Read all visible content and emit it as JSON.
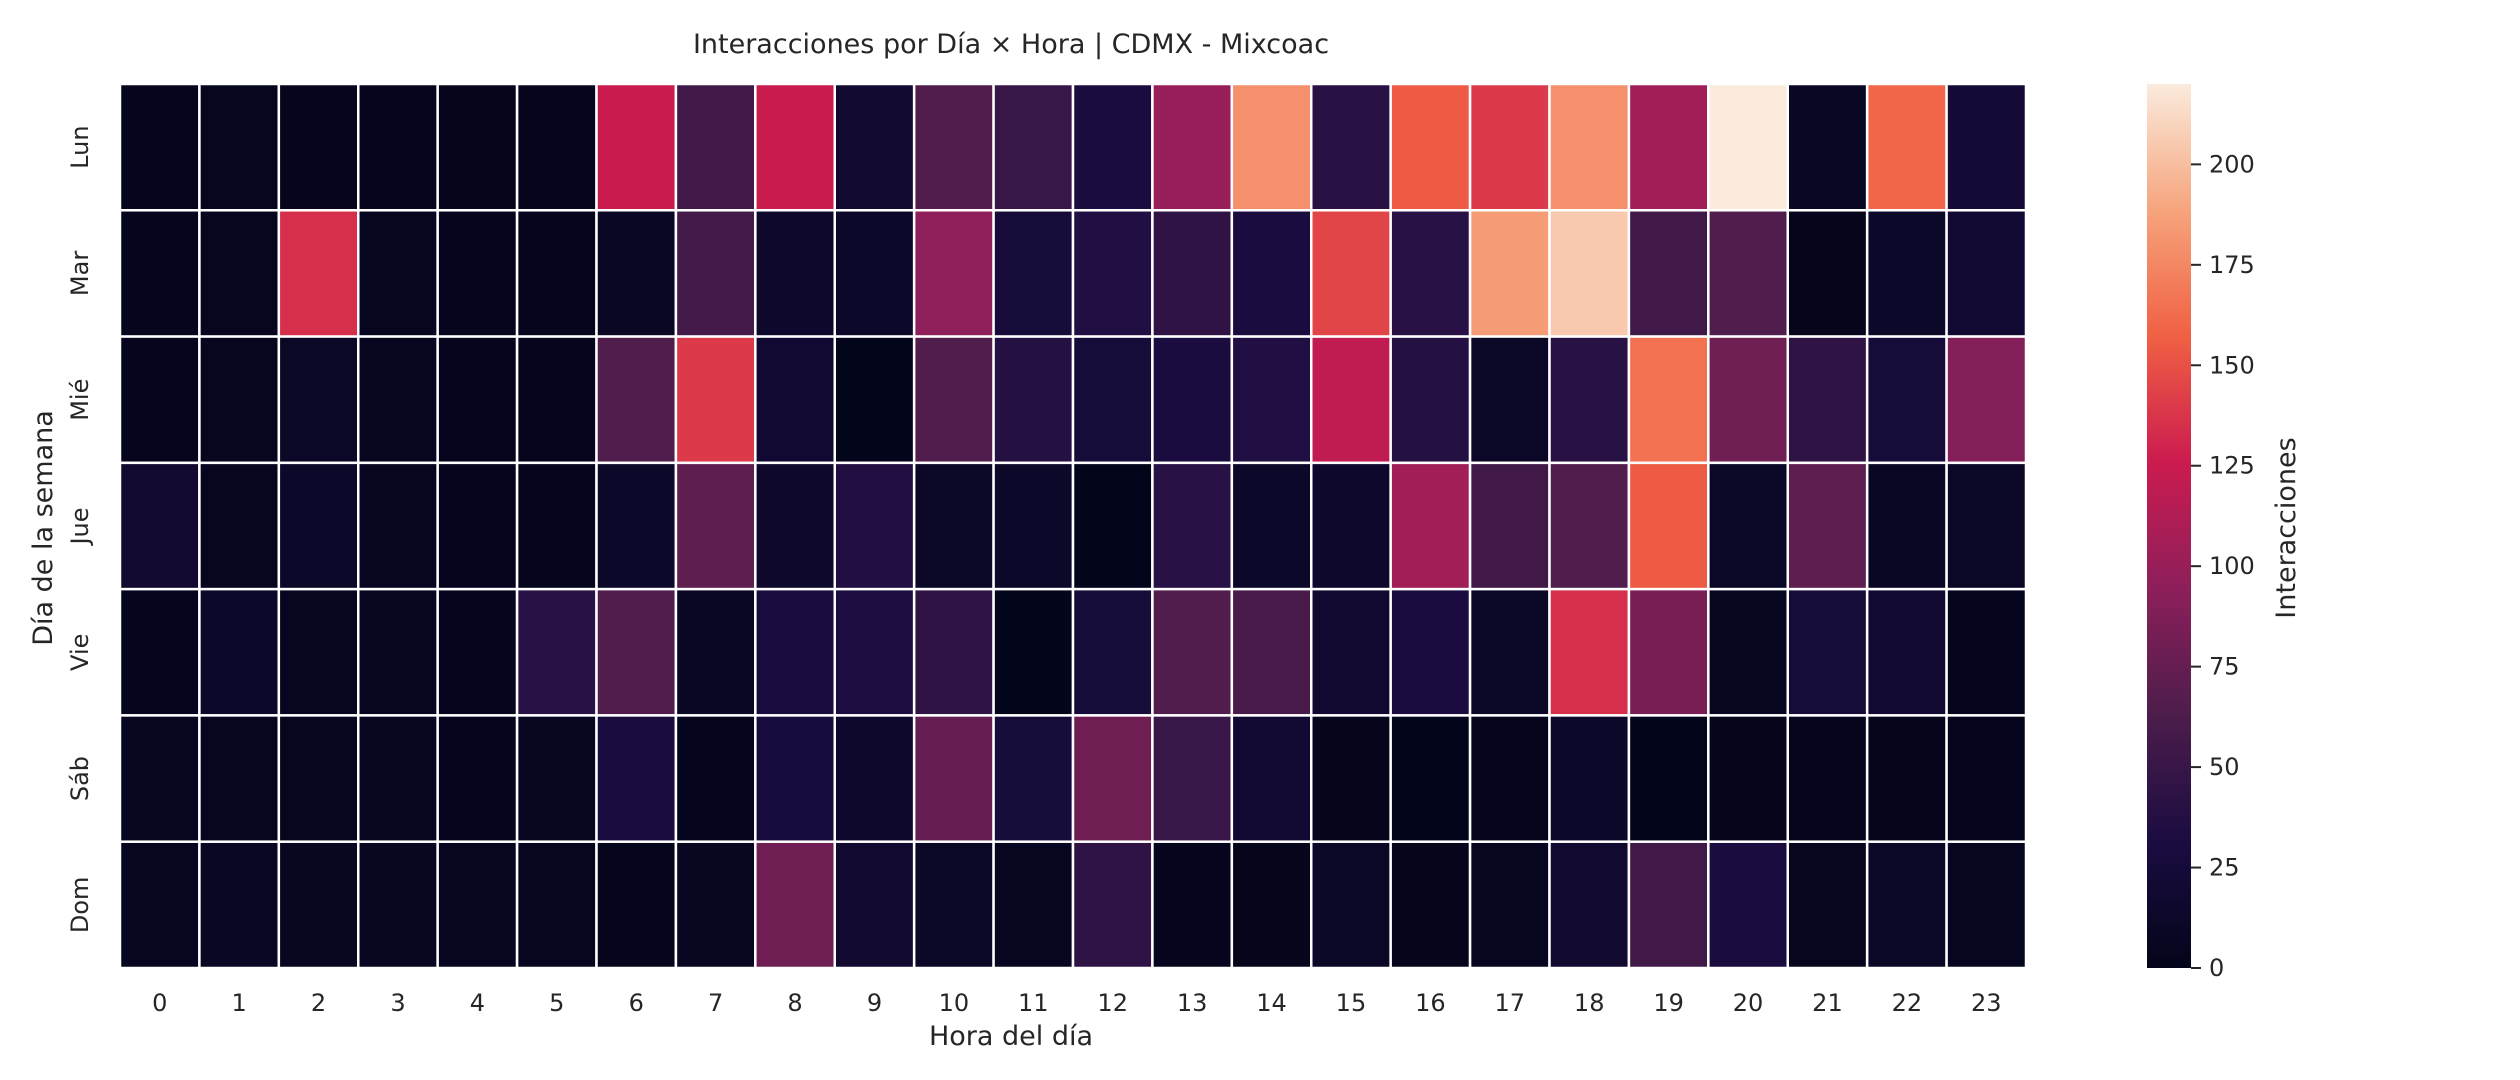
{
  "chart_data": {
    "type": "heatmap",
    "title": "Interacciones por Día × Hora | CDMX - Mixcoac",
    "xlabel": "Hora del día",
    "ylabel": "Día de la semana",
    "x_categories": [
      "0",
      "1",
      "2",
      "3",
      "4",
      "5",
      "6",
      "7",
      "8",
      "9",
      "10",
      "11",
      "12",
      "13",
      "14",
      "15",
      "16",
      "17",
      "18",
      "19",
      "20",
      "21",
      "22",
      "23"
    ],
    "y_categories": [
      "Lun",
      "Mar",
      "Mié",
      "Jue",
      "Vie",
      "Sáb",
      "Dom"
    ],
    "values": [
      [
        3,
        4,
        3,
        3,
        2,
        3,
        125,
        55,
        125,
        18,
        65,
        50,
        30,
        100,
        180,
        40,
        155,
        140,
        180,
        105,
        220,
        8,
        160,
        22
      ],
      [
        3,
        4,
        135,
        5,
        3,
        3,
        8,
        58,
        15,
        12,
        95,
        25,
        35,
        45,
        30,
        145,
        40,
        185,
        205,
        55,
        65,
        2,
        12,
        20
      ],
      [
        3,
        4,
        10,
        5,
        3,
        3,
        65,
        140,
        20,
        0,
        65,
        38,
        25,
        30,
        35,
        120,
        38,
        10,
        40,
        165,
        80,
        45,
        25,
        90
      ],
      [
        18,
        4,
        12,
        5,
        3,
        3,
        12,
        72,
        15,
        35,
        10,
        12,
        0,
        40,
        12,
        15,
        105,
        55,
        65,
        155,
        10,
        72,
        8,
        10
      ],
      [
        3,
        12,
        5,
        5,
        3,
        40,
        65,
        8,
        30,
        32,
        45,
        0,
        25,
        65,
        60,
        18,
        30,
        10,
        135,
        85,
        5,
        25,
        20,
        3
      ],
      [
        5,
        4,
        4,
        5,
        3,
        5,
        30,
        3,
        28,
        15,
        75,
        25,
        80,
        50,
        20,
        2,
        0,
        3,
        12,
        0,
        2,
        3,
        2,
        3
      ],
      [
        5,
        8,
        6,
        6,
        5,
        5,
        3,
        6,
        80,
        18,
        10,
        5,
        45,
        3,
        2,
        10,
        2,
        5,
        18,
        55,
        30,
        4,
        10,
        5
      ]
    ],
    "vmin": 0,
    "vmax": 220,
    "colorbar": {
      "label": "Interacciones",
      "ticks": [
        0,
        25,
        50,
        75,
        100,
        125,
        150,
        175,
        200
      ]
    },
    "colormap": [
      "#03051a",
      "#1b0c41",
      "#4c1d4b",
      "#8d1f5b",
      "#cb1b4f",
      "#f06043",
      "#f6a47c",
      "#faebdd"
    ],
    "grid": false,
    "cell_border_color": "#ffffff"
  }
}
